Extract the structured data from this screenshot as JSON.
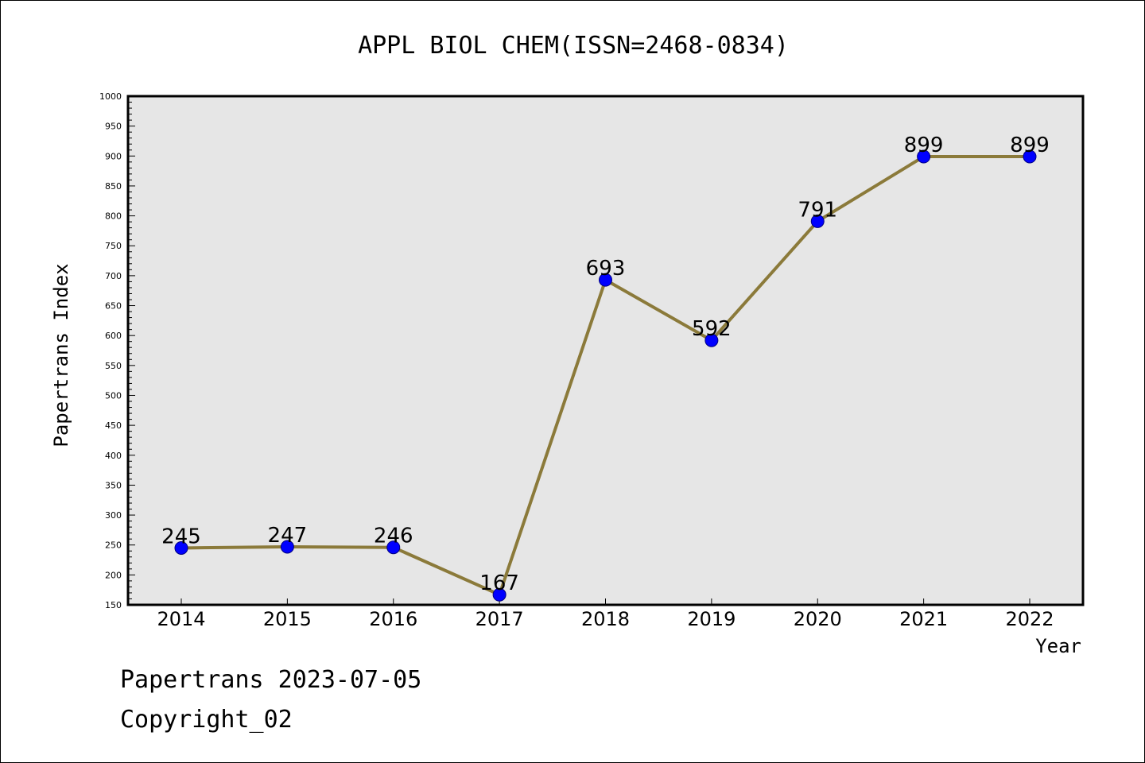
{
  "chart_data": {
    "type": "line",
    "title": "APPL BIOL CHEM(ISSN=2468-0834)",
    "xlabel": "Year",
    "ylabel": "Papertrans Index",
    "categories": [
      "2014",
      "2015",
      "2016",
      "2017",
      "2018",
      "2019",
      "2020",
      "2021",
      "2022"
    ],
    "series": [
      {
        "values": [
          245,
          247,
          246,
          167,
          693,
          592,
          791,
          899,
          899
        ]
      }
    ],
    "data_labels": [
      "245",
      "247",
      "246",
      "167",
      "693",
      "592",
      "791",
      "899",
      "899"
    ],
    "ylim": [
      150,
      1000
    ],
    "yticks": [
      "150",
      "200",
      "250",
      "300",
      "350",
      "400",
      "450",
      "500",
      "550",
      "600",
      "650",
      "700",
      "750",
      "800",
      "850",
      "900",
      "950",
      "1000"
    ],
    "line_color": "#8b7a3a",
    "marker_color": "#0000ff",
    "plot_background": "#e6e6e6",
    "grid": false,
    "legend": "none"
  },
  "footer": {
    "line1": "Papertrans 2023-07-05",
    "line2": "Copyright_02"
  }
}
